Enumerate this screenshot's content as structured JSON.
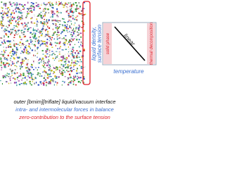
{
  "diagram": {
    "y_axis_label": [
      "liquid density,",
      "surface tension"
    ],
    "x_axis_label": "temperature",
    "line_label": "linear",
    "left_band_label": "solid phase",
    "right_band_label": "thermal decomposition"
  },
  "caption": {
    "line1": "outer [bmim][triflate] liquid/vacuum interface",
    "line2": "intra- and intermolecular forces in balance",
    "line3": "zero-contribution to the surface tension"
  }
}
